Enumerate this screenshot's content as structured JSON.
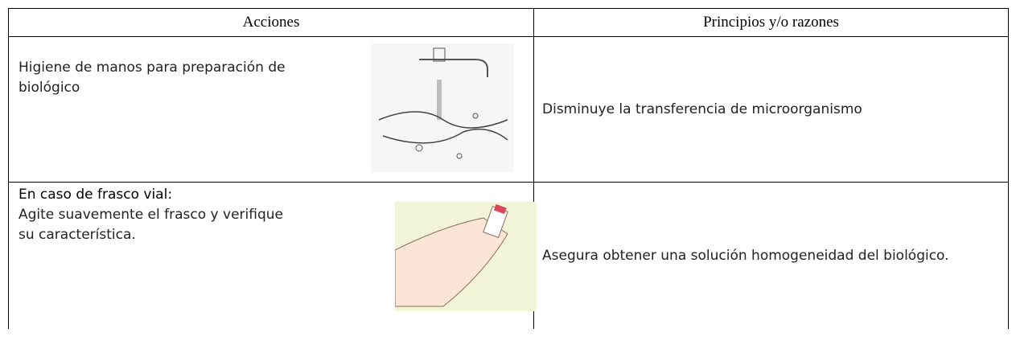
{
  "table": {
    "headers": [
      "Acciones",
      "Principios y/o razones"
    ],
    "rows": [
      {
        "action": "Higiene de manos  para preparación de biológico",
        "reason": "Disminuye la transferencia de microorganismo"
      },
      {
        "heading": "En caso de frasco vial:",
        "action": "Agite suavemente  el frasco y  verifique su característica.",
        "reason": "Asegura obtener una solución homogeneidad del biológico."
      }
    ]
  }
}
